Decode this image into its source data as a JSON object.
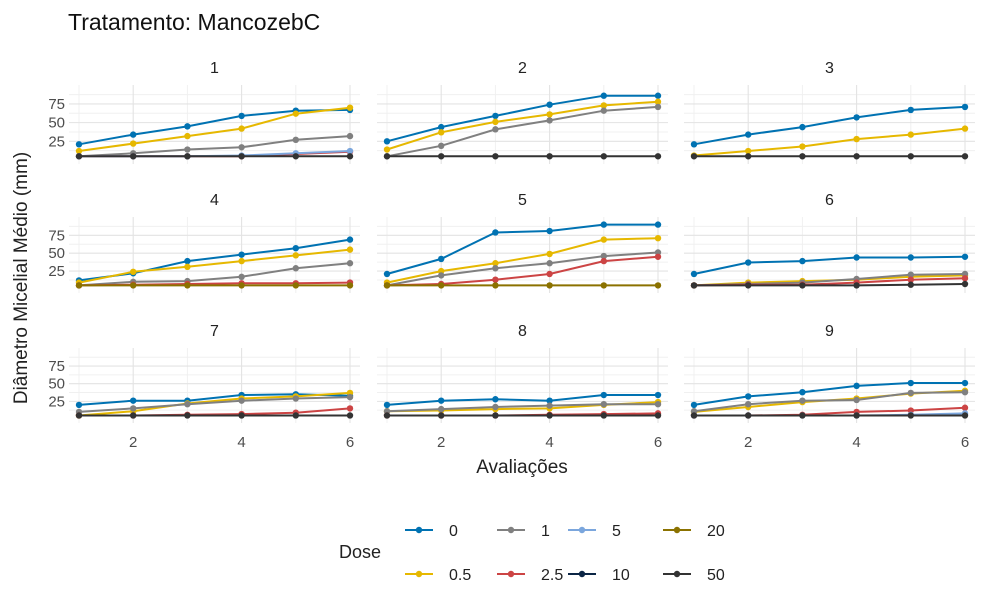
{
  "chart_data": {
    "type": "line",
    "title": "Tratamento: MancozebC",
    "xlabel": "Avaliações",
    "ylabel": "Diâmetro Micelial Médio (mm)",
    "x": [
      1,
      2,
      3,
      4,
      5,
      6
    ],
    "xlim": [
      1,
      6
    ],
    "ylim": [
      0,
      95
    ],
    "x_ticks": [
      2,
      4,
      6
    ],
    "y_ticks": [
      25,
      50,
      75
    ],
    "grid": true,
    "legend": {
      "title": "Dose",
      "placement": "bottom",
      "entries": [
        {
          "label": "0",
          "color": "#0072B2"
        },
        {
          "label": "0.5",
          "color": "#E6B800"
        },
        {
          "label": "1",
          "color": "#808080"
        },
        {
          "label": "2.5",
          "color": "#CC4444"
        },
        {
          "label": "5",
          "color": "#7BA6DD"
        },
        {
          "label": "10",
          "color": "#0B2545"
        },
        {
          "label": "20",
          "color": "#8B7200"
        },
        {
          "label": "50",
          "color": "#333333"
        }
      ]
    },
    "panels": [
      {
        "label": "1",
        "series": [
          {
            "name": "0",
            "values": [
              21,
              34,
              45,
              59,
              66,
              67
            ]
          },
          {
            "name": "0.5",
            "values": [
              12,
              22,
              32,
              42,
              62,
              70
            ]
          },
          {
            "name": "1",
            "values": [
              5,
              9,
              14,
              17,
              27,
              32
            ]
          },
          {
            "name": "2.5",
            "values": [
              5,
              5,
              5,
              5,
              8,
              11
            ]
          },
          {
            "name": "5",
            "values": [
              5,
              5,
              5,
              6,
              9,
              12
            ]
          },
          {
            "name": "50",
            "values": [
              5,
              5,
              5,
              5,
              5,
              5
            ]
          }
        ]
      },
      {
        "label": "2",
        "series": [
          {
            "name": "0",
            "values": [
              25,
              44,
              59,
              74,
              86,
              86
            ]
          },
          {
            "name": "0.5",
            "values": [
              14,
              37,
              51,
              61,
              73,
              78
            ]
          },
          {
            "name": "1",
            "values": [
              5,
              19,
              41,
              53,
              66,
              71
            ]
          },
          {
            "name": "50",
            "values": [
              5,
              5,
              5,
              5,
              5,
              5
            ]
          }
        ]
      },
      {
        "label": "3",
        "series": [
          {
            "name": "0",
            "values": [
              21,
              34,
              44,
              57,
              67,
              71
            ]
          },
          {
            "name": "0.5",
            "values": [
              6,
              12,
              18,
              28,
              34,
              42
            ]
          },
          {
            "name": "50",
            "values": [
              5,
              5,
              5,
              5,
              5,
              5
            ]
          }
        ]
      },
      {
        "label": "4",
        "series": [
          {
            "name": "0",
            "values": [
              12,
              22,
              39,
              48,
              57,
              69
            ]
          },
          {
            "name": "0.5",
            "values": [
              9,
              24,
              31,
              39,
              47,
              55
            ]
          },
          {
            "name": "1",
            "values": [
              5,
              10,
              11,
              17,
              29,
              36
            ]
          },
          {
            "name": "2.5",
            "values": [
              5,
              6,
              7,
              8,
              8,
              9
            ]
          },
          {
            "name": "20",
            "values": [
              5,
              5,
              5,
              5,
              5,
              5
            ]
          }
        ]
      },
      {
        "label": "5",
        "series": [
          {
            "name": "0",
            "values": [
              21,
              42,
              79,
              81,
              90,
              90
            ]
          },
          {
            "name": "0.5",
            "values": [
              9,
              25,
              36,
              49,
              69,
              71
            ]
          },
          {
            "name": "1",
            "values": [
              5,
              19,
              29,
              36,
              46,
              51
            ]
          },
          {
            "name": "2.5",
            "values": [
              5,
              7,
              13,
              21,
              39,
              45
            ]
          },
          {
            "name": "20",
            "values": [
              5,
              5,
              5,
              5,
              5,
              5
            ]
          }
        ]
      },
      {
        "label": "6",
        "series": [
          {
            "name": "0",
            "values": [
              21,
              37,
              39,
              44,
              44,
              45
            ]
          },
          {
            "name": "0.5",
            "values": [
              5,
              9,
              11,
              13,
              17,
              19
            ]
          },
          {
            "name": "1",
            "values": [
              5,
              7,
              9,
              14,
              20,
              21
            ]
          },
          {
            "name": "2.5",
            "values": [
              5,
              6,
              6,
              9,
              13,
              15
            ]
          },
          {
            "name": "50",
            "values": [
              5,
              5,
              5,
              5,
              6,
              7
            ]
          }
        ]
      },
      {
        "label": "7",
        "series": [
          {
            "name": "0",
            "values": [
              20,
              26,
              26,
              34,
              35,
              33
            ]
          },
          {
            "name": "0.5",
            "values": [
              5,
              11,
              22,
              29,
              32,
              37
            ]
          },
          {
            "name": "1",
            "values": [
              10,
              15,
              21,
              26,
              29,
              31
            ]
          },
          {
            "name": "2.5",
            "values": [
              5,
              5,
              6,
              7,
              9,
              15
            ]
          },
          {
            "name": "50",
            "values": [
              5,
              5,
              5,
              5,
              5,
              5
            ]
          }
        ]
      },
      {
        "label": "8",
        "series": [
          {
            "name": "0",
            "values": [
              20,
              26,
              28,
              26,
              34,
              34
            ]
          },
          {
            "name": "0.5",
            "values": [
              11,
              12,
              14,
              15,
              20,
              24
            ]
          },
          {
            "name": "1",
            "values": [
              11,
              14,
              17,
              19,
              21,
              21
            ]
          },
          {
            "name": "2.5",
            "values": [
              5,
              5,
              5,
              6,
              7,
              8
            ]
          },
          {
            "name": "50",
            "values": [
              5,
              5,
              5,
              5,
              5,
              5
            ]
          }
        ]
      },
      {
        "label": "9",
        "series": [
          {
            "name": "0",
            "values": [
              20,
              32,
              38,
              47,
              51,
              51
            ]
          },
          {
            "name": "0.5",
            "values": [
              10,
              17,
              24,
              29,
              36,
              40
            ]
          },
          {
            "name": "1",
            "values": [
              11,
              21,
              26,
              27,
              37,
              38
            ]
          },
          {
            "name": "2.5",
            "values": [
              5,
              5,
              6,
              10,
              12,
              16
            ]
          },
          {
            "name": "5",
            "values": [
              5,
              5,
              5,
              5,
              6,
              8
            ]
          },
          {
            "name": "50",
            "values": [
              5,
              5,
              5,
              5,
              5,
              5
            ]
          }
        ]
      }
    ]
  }
}
